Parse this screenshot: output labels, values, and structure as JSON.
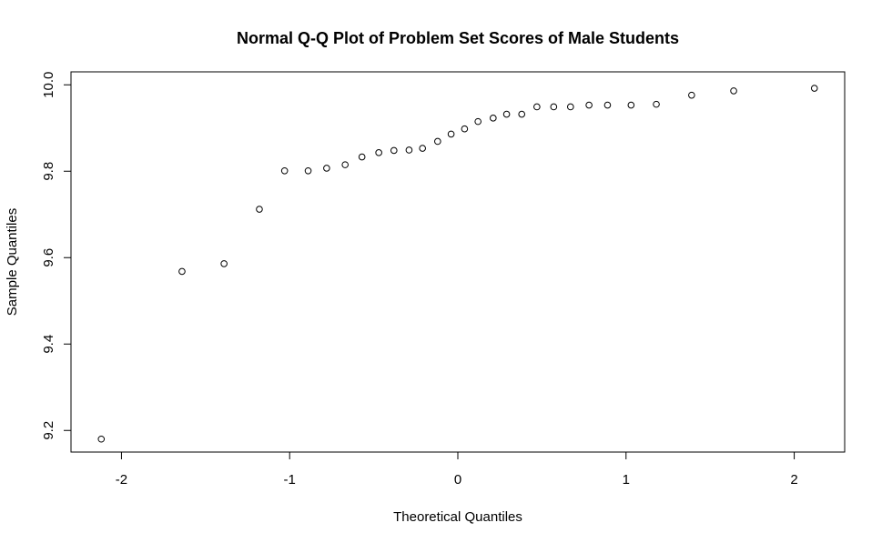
{
  "chart_data": {
    "type": "scatter",
    "title": "Normal Q-Q Plot of Problem Set Scores of Male Students",
    "xlabel": "Theoretical Quantiles",
    "ylabel": "Sample Quantiles",
    "xlim": [
      -2.3,
      2.3
    ],
    "ylim": [
      9.15,
      10.03
    ],
    "x_ticks": [
      -2,
      -1,
      0,
      1,
      2
    ],
    "x_tick_labels": [
      "-2",
      "-1",
      "0",
      "1",
      "2"
    ],
    "y_ticks": [
      9.2,
      9.4,
      9.6,
      9.8,
      10.0
    ],
    "y_tick_labels": [
      "9.2",
      "9.4",
      "9.6",
      "9.8",
      "10.0"
    ],
    "grid": false,
    "legend": "none",
    "point_style": "open-circle",
    "points": [
      {
        "x": -2.12,
        "y": 9.18
      },
      {
        "x": -1.64,
        "y": 9.568
      },
      {
        "x": -1.39,
        "y": 9.586
      },
      {
        "x": -1.18,
        "y": 9.712
      },
      {
        "x": -1.03,
        "y": 9.801
      },
      {
        "x": -0.89,
        "y": 9.801
      },
      {
        "x": -0.78,
        "y": 9.807
      },
      {
        "x": -0.67,
        "y": 9.815
      },
      {
        "x": -0.57,
        "y": 9.833
      },
      {
        "x": -0.47,
        "y": 9.843
      },
      {
        "x": -0.38,
        "y": 9.848
      },
      {
        "x": -0.29,
        "y": 9.849
      },
      {
        "x": -0.21,
        "y": 9.853
      },
      {
        "x": -0.12,
        "y": 9.869
      },
      {
        "x": -0.04,
        "y": 9.886
      },
      {
        "x": 0.04,
        "y": 9.898
      },
      {
        "x": 0.12,
        "y": 9.915
      },
      {
        "x": 0.21,
        "y": 9.923
      },
      {
        "x": 0.29,
        "y": 9.932
      },
      {
        "x": 0.38,
        "y": 9.932
      },
      {
        "x": 0.47,
        "y": 9.949
      },
      {
        "x": 0.57,
        "y": 9.949
      },
      {
        "x": 0.67,
        "y": 9.949
      },
      {
        "x": 0.78,
        "y": 9.953
      },
      {
        "x": 0.89,
        "y": 9.953
      },
      {
        "x": 1.03,
        "y": 9.953
      },
      {
        "x": 1.18,
        "y": 9.955
      },
      {
        "x": 1.39,
        "y": 9.976
      },
      {
        "x": 1.64,
        "y": 9.986
      },
      {
        "x": 2.12,
        "y": 9.992
      }
    ]
  }
}
